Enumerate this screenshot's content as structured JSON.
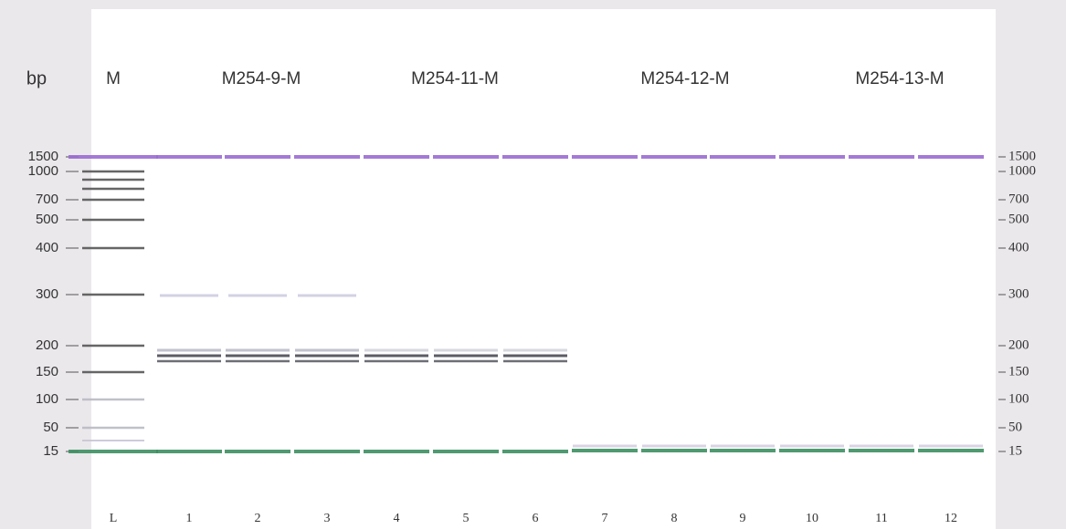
{
  "header": {
    "unit": "bp",
    "marker": "M",
    "groups": [
      "M254-9-M",
      "M254-11-M",
      "M254-12-M",
      "M254-13-M"
    ]
  },
  "size_labels_left": [
    "1500",
    "1000",
    "700",
    "500",
    "400",
    "300",
    "200",
    "150",
    "100",
    "50",
    "15"
  ],
  "size_labels_right": [
    "1500",
    "1000",
    "700",
    "500",
    "400",
    "300",
    "200",
    "150",
    "100",
    "50",
    "15"
  ],
  "lanes": [
    "L",
    "1",
    "2",
    "3",
    "4",
    "5",
    "6",
    "7",
    "8",
    "9",
    "10",
    "11",
    "12"
  ]
}
